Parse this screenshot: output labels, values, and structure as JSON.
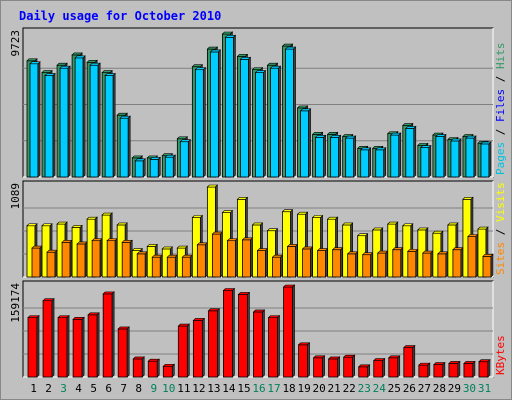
{
  "chart_data": {
    "type": "bar",
    "title": "Daily usage for October 2010",
    "categories": [
      "1",
      "2",
      "3",
      "4",
      "5",
      "6",
      "7",
      "8",
      "9",
      "10",
      "11",
      "12",
      "13",
      "14",
      "15",
      "16",
      "17",
      "18",
      "19",
      "20",
      "21",
      "22",
      "23",
      "24",
      "25",
      "26",
      "27",
      "28",
      "29",
      "30",
      "31"
    ],
    "weekend_days": [
      "3",
      "9",
      "10",
      "16",
      "17",
      "23",
      "24",
      "30",
      "31"
    ],
    "colors": {
      "hits": "#339966",
      "files": "#00ccff",
      "pages": "#00e0ff",
      "visits": "#ffff00",
      "sites": "#ff8800",
      "kbytes": "#ff0000",
      "weekday_label": "#000000",
      "weekend_label": "#00805c",
      "title": "#0000ff",
      "panel_bg": "#c0c0c0",
      "gridline": "#808080"
    },
    "panels": [
      {
        "id": "hits_files",
        "max_label": "9723",
        "ylim": [
          0,
          9723
        ],
        "legend": [
          {
            "label": "Pages",
            "color": "#00c0e0"
          },
          {
            "label": "Files",
            "color": "#0000ff"
          },
          {
            "label": "Hits",
            "color": "#339966"
          }
        ],
        "series": [
          {
            "name": "Hits",
            "values": [
              7900,
              7100,
              7600,
              8300,
              7800,
              7100,
              4200,
              1300,
              1300,
              1450,
              2600,
              7500,
              8700,
              9723,
              8200,
              7300,
              7600,
              8900,
              4700,
              2900,
              2900,
              2750,
              1950,
              1950,
              2950,
              3500,
              2150,
              2850,
              2550,
              2750,
              2300
            ]
          },
          {
            "name": "Files",
            "values": [
              7700,
              6900,
              7400,
              8100,
              7600,
              6900,
              4000,
              1100,
              1200,
              1350,
              2400,
              7300,
              8500,
              9500,
              8000,
              7100,
              7400,
              8700,
              4500,
              2700,
              2700,
              2650,
              1850,
              1850,
              2850,
              3300,
              2000,
              2750,
              2450,
              2650,
              2250
            ]
          }
        ]
      },
      {
        "id": "visits_sites",
        "max_label": "1089",
        "ylim": [
          0,
          1089
        ],
        "legend": [
          {
            "label": "Sites",
            "color": "#ff8800"
          },
          {
            "label": "Visits",
            "color": "#ffff00"
          }
        ],
        "series": [
          {
            "name": "Visits",
            "values": [
              620,
              620,
              640,
              600,
              700,
              750,
              630,
              320,
              370,
              340,
              350,
              720,
              1089,
              780,
              940,
              630,
              560,
              790,
              760,
              720,
              700,
              630,
              500,
              570,
              640,
              620,
              570,
              530,
              630,
              940,
              580
            ]
          },
          {
            "name": "Sites",
            "values": [
              350,
              300,
              420,
              400,
              440,
              440,
              420,
              280,
              240,
              240,
              240,
              390,
              520,
              440,
              450,
              320,
              240,
              370,
              340,
              320,
              330,
              280,
              270,
              290,
              330,
              310,
              290,
              280,
              330,
              490,
              250
            ]
          }
        ]
      },
      {
        "id": "kbytes",
        "max_label": "159174",
        "ylim": [
          0,
          159174
        ],
        "legend": [
          {
            "label": "KBytes",
            "color": "#ff0000"
          }
        ],
        "series": [
          {
            "name": "KBytes",
            "values": [
              105000,
              135000,
              105000,
              102000,
              110000,
              147000,
              85000,
              32000,
              28000,
              19000,
              90000,
              100000,
              117000,
              153000,
              146000,
              115000,
              105000,
              159174,
              57000,
              34000,
              32000,
              35000,
              18000,
              29000,
              34000,
              52000,
              21000,
              22000,
              24000,
              24000,
              27000
            ]
          }
        ]
      }
    ]
  }
}
